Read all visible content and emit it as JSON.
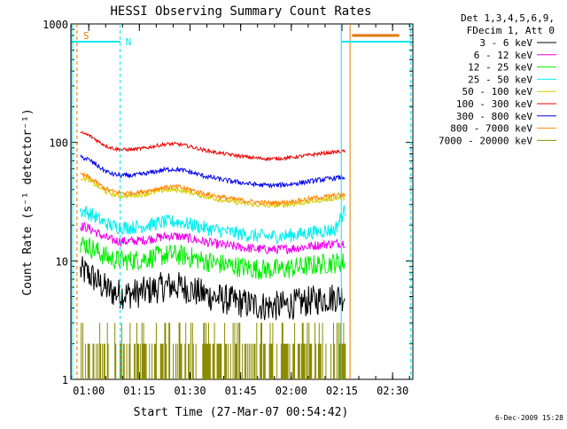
{
  "chart_data": {
    "type": "line",
    "title": "HESSI Observing Summary Count Rates",
    "xlabel": "Start Time (27-Mar-07 00:54:42)",
    "ylabel": "Count Rate (s⁻¹ detector⁻¹)",
    "ylim": [
      1,
      1000
    ],
    "yscale": "log",
    "xlim_minutes": [
      54.7,
      156.0
    ],
    "x_ticks": [
      "01:00",
      "01:15",
      "01:30",
      "01:45",
      "02:00",
      "02:15",
      "02:30"
    ],
    "y_ticks": [
      "1",
      "10",
      "100",
      "1000"
    ],
    "legend_header": [
      "Det 1,3,4,5,6,9,",
      "FDecim 1, Att 0"
    ],
    "legend_position": "right-outside",
    "flags": [
      {
        "label": "S",
        "color": "#e07a00"
      },
      {
        "label": "N",
        "color": "#00e5ee"
      }
    ],
    "footer_date": "6-Dec-2009 15:28",
    "series": [
      {
        "name": "3 - 6 keV",
        "color": "#000000"
      },
      {
        "name": "6 - 12 keV",
        "color": "#ee00ee"
      },
      {
        "name": "12 - 25 keV",
        "color": "#00ee00"
      },
      {
        "name": "25 - 50 keV",
        "color": "#00eeee"
      },
      {
        "name": "50 - 100 keV",
        "color": "#d6cc00"
      },
      {
        "name": "100 - 300 keV",
        "color": "#ee0000"
      },
      {
        "name": "300 - 800 keV",
        "color": "#0000ee"
      },
      {
        "name": "800 - 7000 keV",
        "color": "#ff8800"
      },
      {
        "name": "7000 - 20000 keV",
        "color": "#8b8b00"
      }
    ]
  }
}
